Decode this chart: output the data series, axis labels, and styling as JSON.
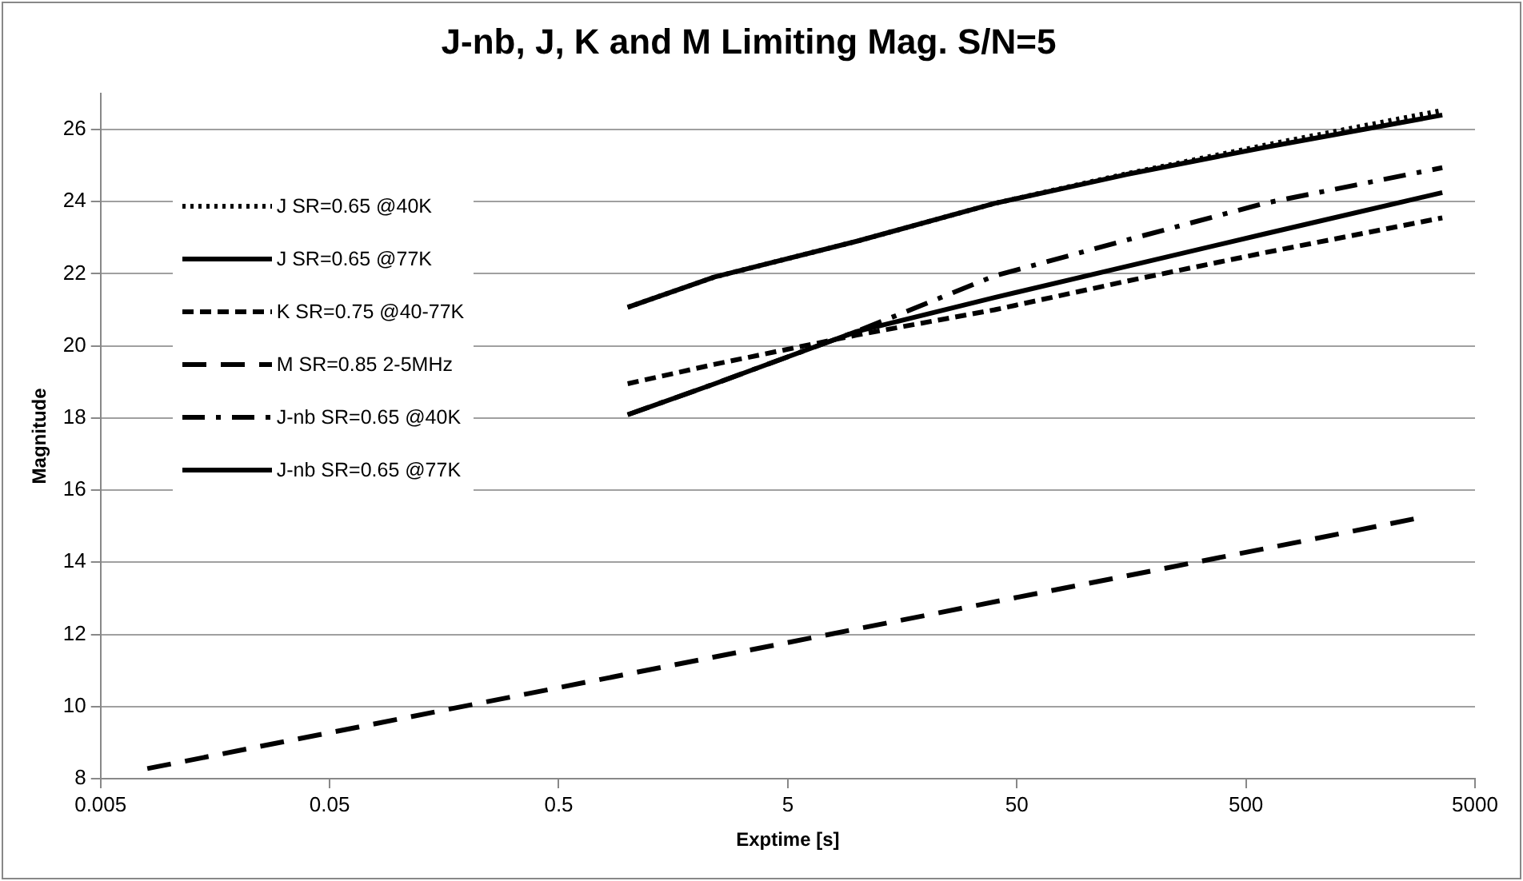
{
  "chart_data": {
    "type": "line",
    "title": "J-nb, J, K and M Limiting Mag. S/N=5",
    "xlabel": "Exptime [s]",
    "ylabel": "Magnitude",
    "log": "x",
    "grid": "y",
    "legend": "top left",
    "marker": "none",
    "xlim": [
      0.005,
      5000
    ],
    "xticks": [
      0.005,
      0.05,
      0.5,
      5,
      50,
      500,
      5000
    ],
    "ylim": [
      8,
      27
    ],
    "yticks": [
      8,
      10,
      12,
      14,
      16,
      18,
      20,
      22,
      24,
      26
    ],
    "series": [
      {
        "name": "J SR=0.65 @40K",
        "color": "#000000",
        "line_style": "dotted",
        "x": [
          1,
          2.4,
          10,
          40,
          150,
          600,
          3600
        ],
        "values": [
          21.07,
          21.91,
          22.9,
          23.95,
          24.77,
          25.56,
          26.53
        ]
      },
      {
        "name": "J SR=0.65 @77K",
        "color": "#000000",
        "line_style": "solid",
        "x": [
          1,
          2.4,
          10,
          40,
          150,
          600,
          3600
        ],
        "values": [
          21.07,
          21.91,
          22.9,
          23.95,
          24.75,
          25.5,
          26.4
        ]
      },
      {
        "name": "K SR=0.75 @40-77K",
        "color": "#000000",
        "line_style": "dashed",
        "x": [
          1,
          2.4,
          10,
          40,
          150,
          600,
          3600
        ],
        "values": [
          18.95,
          19.49,
          20.3,
          21.0,
          21.79,
          22.58,
          23.55
        ]
      },
      {
        "name": "M SR=0.85 2-5MHz",
        "color": "#000000",
        "line_style": "longdashed",
        "x": [
          0.008,
          0.08,
          0.8,
          8,
          80,
          800,
          2700
        ],
        "values": [
          8.28,
          9.53,
          10.78,
          12.03,
          13.28,
          14.53,
          15.2
        ]
      },
      {
        "name": "J-nb SR=0.65 @40K",
        "color": "#000000",
        "line_style": "dashdot",
        "x": [
          1,
          2.4,
          10,
          40,
          150,
          600,
          3600
        ],
        "values": [
          18.09,
          18.95,
          20.4,
          21.94,
          22.93,
          23.95,
          24.94
        ]
      },
      {
        "name": "J-nb SR=0.65 @77K",
        "color": "#000000",
        "line_style": "solid",
        "x": [
          1,
          2.4,
          10,
          40,
          150,
          600,
          3600
        ],
        "values": [
          18.09,
          18.95,
          20.4,
          21.34,
          22.2,
          23.1,
          24.25
        ]
      }
    ]
  }
}
